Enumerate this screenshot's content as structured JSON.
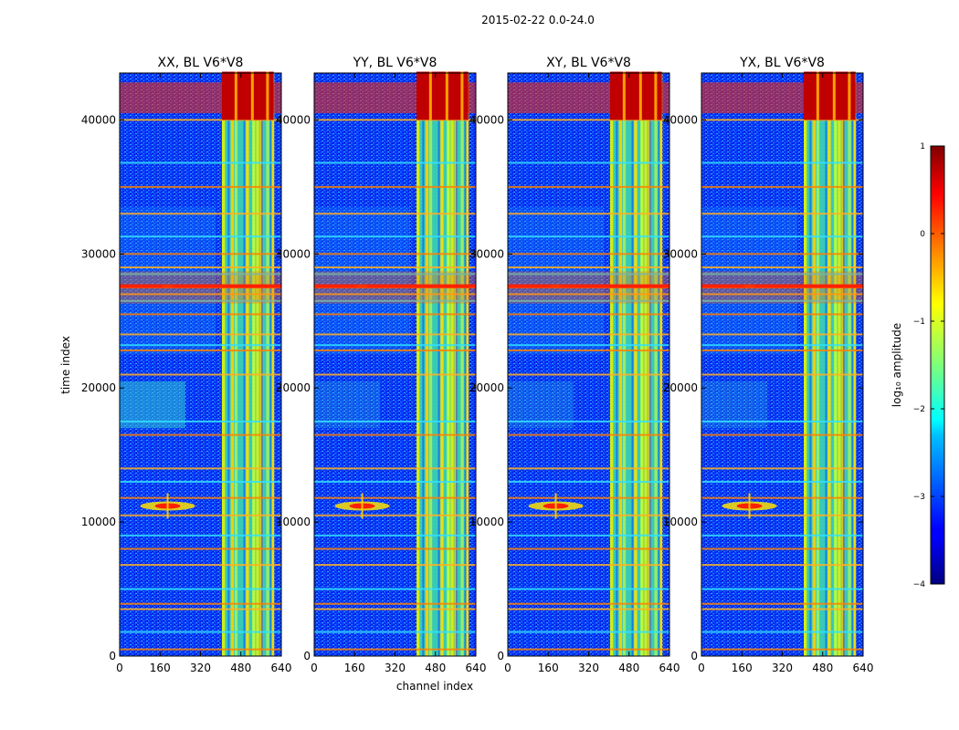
{
  "chart_data": {
    "type": "heatmap",
    "suptitle": "2015-02-22 0.0-24.0",
    "xlabel": "channel index",
    "ylabel": "time index",
    "xlim": [
      0,
      640
    ],
    "ylim": [
      0,
      43500
    ],
    "xticks": [
      0,
      160,
      320,
      480,
      640
    ],
    "yticks": [
      0,
      10000,
      20000,
      30000,
      40000
    ],
    "panels": [
      {
        "title": "XX, BL V6*V8",
        "hot_top": true,
        "strong_band_27000": true
      },
      {
        "title": "YY, BL V6*V8",
        "hot_top": true,
        "strong_band_27000": true
      },
      {
        "title": "XY, BL V6*V8",
        "hot_top": true,
        "strong_band_27000": true
      },
      {
        "title": "YX, BL V6*V8",
        "hot_top": true,
        "strong_band_27000": true
      }
    ],
    "features": {
      "rfi_channel_band": [
        405,
        610
      ],
      "rfi_channel_columns": [
        405,
        440,
        455,
        500,
        525,
        540,
        555,
        580,
        600
      ],
      "hot_time_band": [
        40500,
        42800
      ],
      "horizontal_lines": [
        500,
        1800,
        3500,
        3900,
        5000,
        6800,
        8000,
        9000,
        10500,
        11800,
        13000,
        14000,
        16500,
        17500,
        21000,
        22800,
        23200,
        24000,
        25500,
        26500,
        27000,
        27500,
        28500,
        29000,
        30000,
        31300,
        33000,
        35000,
        36800,
        40000
      ],
      "source_blob": {
        "channel": 190,
        "time": 11200
      },
      "source_blob_2": {
        "channel": 190,
        "time": 27600
      }
    },
    "colorbar": {
      "label": "log₁₀ amplitude",
      "ticks": [
        1,
        0,
        -1,
        -2,
        -3,
        -4
      ],
      "range": [
        -4,
        1
      ],
      "colormap": "jet"
    }
  }
}
